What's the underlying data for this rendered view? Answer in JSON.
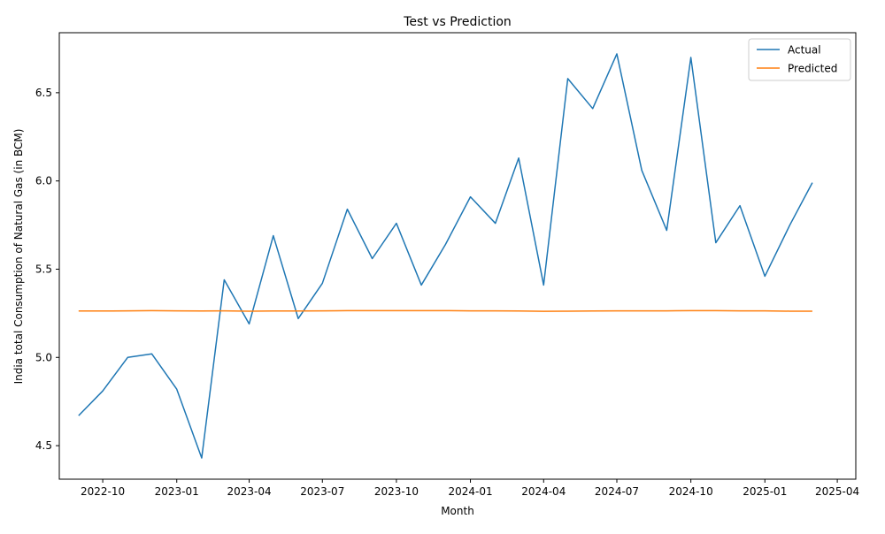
{
  "chart_data": {
    "type": "line",
    "title": "Test vs Prediction",
    "xlabel": "Month",
    "ylabel": "India total Consumption of Natural Gas (in BCM)",
    "grid": false,
    "legend_position": "top-right",
    "x_tick_labels": [
      "2022-10",
      "2023-01",
      "2023-04",
      "2023-07",
      "2023-10",
      "2024-01",
      "2024-04",
      "2024-07",
      "2024-10",
      "2025-01",
      "2025-04"
    ],
    "y_ticks": [
      4.5,
      5.0,
      5.5,
      6.0,
      6.5
    ],
    "y_tick_labels": [
      "4.5",
      "5.0",
      "5.5",
      "6.0",
      "6.5"
    ],
    "ylim": [
      4.31,
      6.84
    ],
    "xlim": [
      "2022-08-08",
      "2025-04-24"
    ],
    "x": [
      "2022-09-01",
      "2022-10-01",
      "2022-11-01",
      "2022-12-01",
      "2023-01-01",
      "2023-02-01",
      "2023-03-01",
      "2023-04-01",
      "2023-05-01",
      "2023-06-01",
      "2023-07-01",
      "2023-08-01",
      "2023-09-01",
      "2023-10-01",
      "2023-11-01",
      "2023-12-01",
      "2024-01-01",
      "2024-02-01",
      "2024-03-01",
      "2024-04-01",
      "2024-05-01",
      "2024-06-01",
      "2024-07-01",
      "2024-08-01",
      "2024-09-01",
      "2024-10-01",
      "2024-11-01",
      "2024-12-01",
      "2025-01-01",
      "2025-02-01",
      "2025-03-01"
    ],
    "series": [
      {
        "name": "Actual",
        "color": "#1f77b4",
        "values": [
          4.67,
          4.81,
          5.0,
          5.02,
          4.82,
          4.43,
          5.44,
          5.19,
          5.69,
          5.22,
          5.42,
          5.84,
          5.56,
          5.76,
          5.41,
          5.64,
          5.91,
          5.76,
          6.13,
          5.41,
          6.58,
          6.41,
          6.72,
          6.06,
          5.72,
          6.7,
          5.65,
          5.86,
          5.46,
          5.75,
          5.99
        ]
      },
      {
        "name": "Predicted",
        "color": "#ff7f0e",
        "values": [
          5.263,
          5.263,
          5.264,
          5.265,
          5.264,
          5.263,
          5.264,
          5.262,
          5.263,
          5.263,
          5.264,
          5.265,
          5.265,
          5.265,
          5.265,
          5.265,
          5.264,
          5.264,
          5.263,
          5.261,
          5.262,
          5.263,
          5.264,
          5.264,
          5.264,
          5.265,
          5.265,
          5.264,
          5.264,
          5.262,
          5.262
        ]
      }
    ]
  }
}
